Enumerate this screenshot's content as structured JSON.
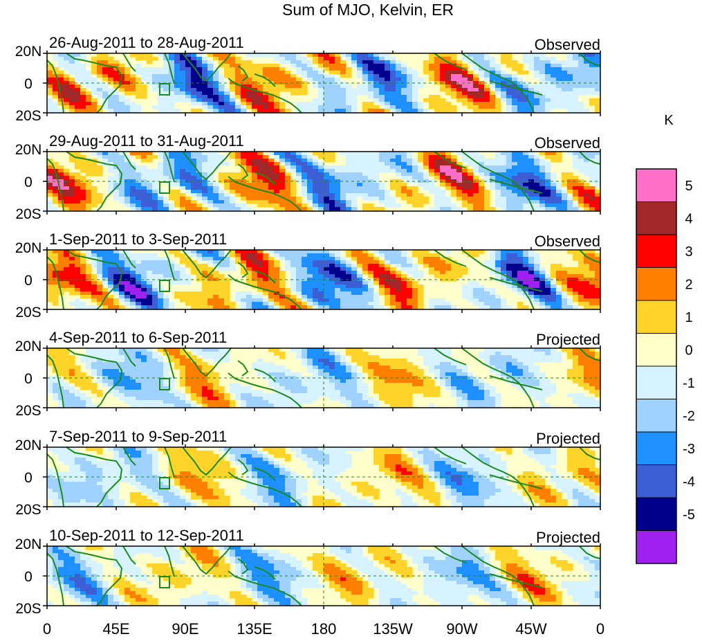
{
  "title": "Sum of MJO, Kelvin, ER",
  "colorbar": {
    "unit_label": "K",
    "levels": [
      {
        "label": "5",
        "color": "#ff6ec7"
      },
      {
        "label": "4",
        "color": "#a02828"
      },
      {
        "label": "3",
        "color": "#ff0000"
      },
      {
        "label": "2",
        "color": "#ff7f00"
      },
      {
        "label": "1",
        "color": "#ffd42a"
      },
      {
        "label": "0",
        "color": "#ffffcc"
      },
      {
        "label": "-1",
        "color": "#d7f3ff"
      },
      {
        "label": "-2",
        "color": "#a0d2ff"
      },
      {
        "label": "-3",
        "color": "#1e90ff"
      },
      {
        "label": "-4",
        "color": "#3d5fd6"
      },
      {
        "label": "-5",
        "color": "#00008c"
      }
    ],
    "extra_colors": [
      "#a020f0"
    ]
  },
  "lat_labels": [
    "20N",
    "0",
    "20S"
  ],
  "lon_labels": [
    "0",
    "45E",
    "90E",
    "135E",
    "180",
    "135W",
    "90W",
    "45W",
    "0"
  ],
  "panels": [
    {
      "date_range": "26-Aug-2011 to 28-Aug-2011",
      "status": "Observed"
    },
    {
      "date_range": "29-Aug-2011 to 31-Aug-2011",
      "status": "Observed"
    },
    {
      "date_range": "1-Sep-2011 to 3-Sep-2011",
      "status": "Observed"
    },
    {
      "date_range": "4-Sep-2011 to 6-Sep-2011",
      "status": "Projected"
    },
    {
      "date_range": "7-Sep-2011 to 9-Sep-2011",
      "status": "Projected"
    },
    {
      "date_range": "10-Sep-2011 to 12-Sep-2011",
      "status": "Projected"
    }
  ],
  "colors": {
    "coastline": "#1a8a1a",
    "reference_line": "#1a8a1a",
    "background": "#ffffff"
  }
}
